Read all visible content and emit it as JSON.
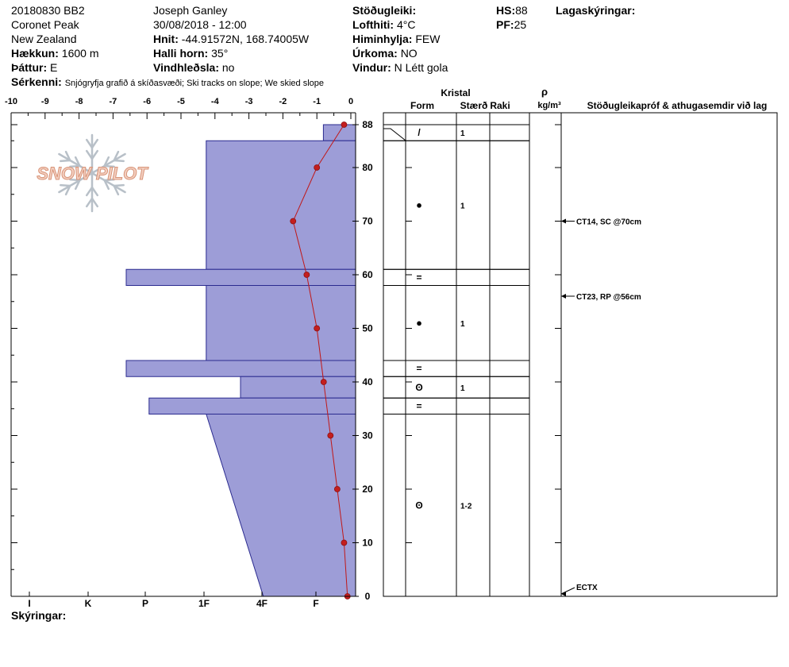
{
  "header": {
    "id": "20180830 BB2",
    "location": "Coronet Peak",
    "country": "New Zealand",
    "elevation_label": "Hækkun:",
    "elevation_value": "1600 m",
    "aspect_label": "Þáttur:",
    "aspect_value": "E",
    "observer": "Joseph Ganley",
    "datetime": "30/08/2018 - 12:00",
    "coords_label": "Hnit:",
    "coords_value": "-44.91572N, 168.74005W",
    "slope_label": "Halli horn:",
    "slope_value": "35°",
    "wind_loading_label": "Vindhleðsla:",
    "wind_loading_value": "no",
    "stability_label": "Stöðugleiki:",
    "stability_value": "",
    "air_temp_label": "Lofthiti:",
    "air_temp_value": "4°C",
    "sky_label": "Himinhylja:",
    "sky_value": "FEW",
    "precip_label": "Úrkoma:",
    "precip_value": "NO",
    "wind_label": "Vindur:",
    "wind_value": "N Létt gola",
    "hs_label": "HS:",
    "hs_value": "88",
    "pf_label": "PF:",
    "pf_value": "25",
    "layer_notes_label": "Lagaskýringar:",
    "features_label": "Sérkenni:",
    "features_value": "Snjógryfja grafið á skíðasvæði; Ski tracks on slope; We skied slope",
    "legend_label": "Skýringar:"
  },
  "logo": {
    "text": "SNOW PILOT"
  },
  "colors": {
    "hardness_fill": "#9d9dd7",
    "hardness_stroke": "#2b2b8f",
    "temp_line": "#c01818"
  },
  "columns": {
    "crystal": "Kristal",
    "form": "Form",
    "size": "Stærð",
    "moisture": "Raki",
    "density_symbol": "ρ",
    "density_unit": "kg/m³",
    "tests": "Stöðugleikapróf & athugasemdir við lag"
  },
  "chart_data": {
    "type": "bar",
    "temp_axis": {
      "ticks": [
        "-10",
        "-9",
        "-8",
        "-7",
        "-6",
        "-5",
        "-4",
        "-3",
        "-2",
        "-1",
        "0"
      ],
      "range": [
        -10,
        0
      ]
    },
    "hardness_axis": {
      "ticks": [
        "I",
        "K",
        "P",
        "1F",
        "4F",
        "F"
      ]
    },
    "depth_axis": {
      "ticks": [
        "0",
        "10",
        "20",
        "30",
        "40",
        "50",
        "60",
        "70",
        "80",
        "88"
      ],
      "range": [
        0,
        88
      ]
    },
    "hardness_profile": [
      {
        "top": 88,
        "bottom": 85,
        "hardness": 0.55
      },
      {
        "top": 85,
        "bottom": 61,
        "hardness": 2.6
      },
      {
        "top": 61,
        "bottom": 58,
        "hardness": 4.0
      },
      {
        "top": 58,
        "bottom": 44,
        "hardness": 2.6
      },
      {
        "top": 44,
        "bottom": 41,
        "hardness": 4.0
      },
      {
        "top": 41,
        "bottom": 37,
        "hardness": 2.0
      },
      {
        "top": 37,
        "bottom": 34,
        "hardness": 3.6
      },
      {
        "top": 34,
        "bottom": 0,
        "hardness_top": 2.6,
        "hardness_bottom": 1.6
      }
    ],
    "temperature_profile": {
      "depth": [
        88,
        80,
        70,
        60,
        50,
        40,
        30,
        20,
        10,
        0
      ],
      "temp": [
        -0.2,
        -1.0,
        -1.7,
        -1.3,
        -1.0,
        -0.8,
        -0.6,
        -0.4,
        -0.2,
        -0.1
      ]
    },
    "layers": [
      {
        "top": 88,
        "bottom": 85,
        "form": "/",
        "size": "1"
      },
      {
        "top": 85,
        "bottom": 61,
        "form": "●",
        "size": "1"
      },
      {
        "top": 61,
        "bottom": 58,
        "form": "=",
        "size": ""
      },
      {
        "top": 58,
        "bottom": 44,
        "form": "●",
        "size": "1"
      },
      {
        "top": 44,
        "bottom": 41,
        "form": "=",
        "size": ""
      },
      {
        "top": 41,
        "bottom": 37,
        "form": "ʘ",
        "size": "1"
      },
      {
        "top": 37,
        "bottom": 34,
        "form": "=",
        "size": ""
      },
      {
        "top": 34,
        "bottom": 0,
        "form": "ʘ",
        "size": "1-2"
      }
    ],
    "tests": [
      {
        "depth": 70,
        "text": "CT14, SC @70cm"
      },
      {
        "depth": 56,
        "text": "CT23, RP @56cm"
      },
      {
        "depth": 1,
        "text": "ECTX"
      }
    ]
  }
}
